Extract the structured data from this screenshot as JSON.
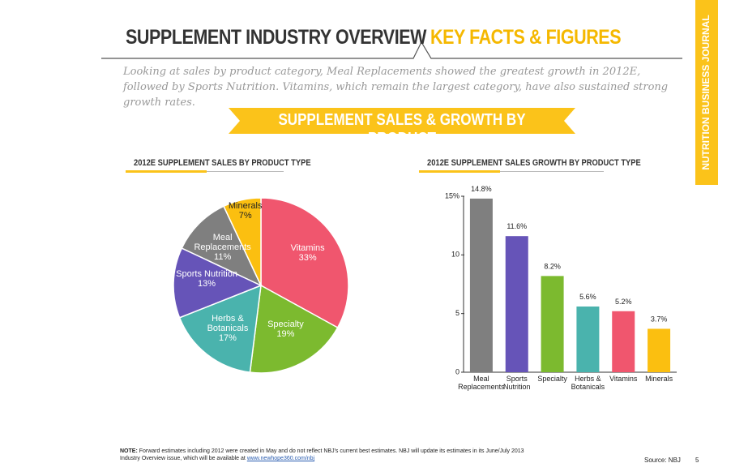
{
  "header": {
    "title": "SUPPLEMENT INDUSTRY OVERVIEW",
    "title_accent": "KEY FACTS & FIGURES",
    "intro": "Looking at sales by product category, Meal Replacements showed the greatest growth in 2012E, followed by Sports Nutrition. Vitamins, which remain the largest category, have also sustained strong growth rates.",
    "banner": "SUPPLEMENT SALES & GROWTH BY PRODUCT",
    "side_label": "NUTRITION BUSINESS JOURNAL"
  },
  "chart_data": [
    {
      "type": "pie",
      "title": "2012E SUPPLEMENT SALES BY PRODUCT TYPE",
      "categories": [
        "Vitamins",
        "Specialty",
        "Herbs & Botanicals",
        "Sports Nutrition",
        "Meal Replacements",
        "Minerals"
      ],
      "values": [
        33,
        19,
        17,
        13,
        11,
        7
      ],
      "value_labels": [
        "33%",
        "19%",
        "17%",
        "13%",
        "11%",
        "7%"
      ],
      "colors": [
        "#f0566e",
        "#7cba2f",
        "#4ab3ad",
        "#6654b8",
        "#7f7f7f",
        "#fbbf10"
      ]
    },
    {
      "type": "bar",
      "title": "2012E SUPPLEMENT SALES GROWTH BY PRODUCT TYPE",
      "categories": [
        "Meal Replacements",
        "Sports Nutrition",
        "Specialty",
        "Herbs & Botanicals",
        "Vitamins",
        "Minerals"
      ],
      "values": [
        14.8,
        11.6,
        8.2,
        5.6,
        5.2,
        3.7
      ],
      "value_labels": [
        "14.8%",
        "11.6%",
        "8.2%",
        "5.6%",
        "5.2%",
        "3.7%"
      ],
      "colors": [
        "#7f7f7f",
        "#6654b8",
        "#7cba2f",
        "#4ab3ad",
        "#f0566e",
        "#fbbf10"
      ],
      "ylim": [
        0,
        15
      ],
      "yticks": [
        0,
        5,
        10,
        {
          "value": 15,
          "label": "15%"
        }
      ]
    }
  ],
  "footer": {
    "note_label": "NOTE:",
    "note": "Forward estimates including 2012 were created in May and do not reflect NBJ's current best estimates. NBJ will update its estimates in its June/July 2013 Industry Overview issue, which will be available at",
    "link": "www.newhope360.com/nbj",
    "source": "Source: NBJ",
    "page": "5"
  }
}
